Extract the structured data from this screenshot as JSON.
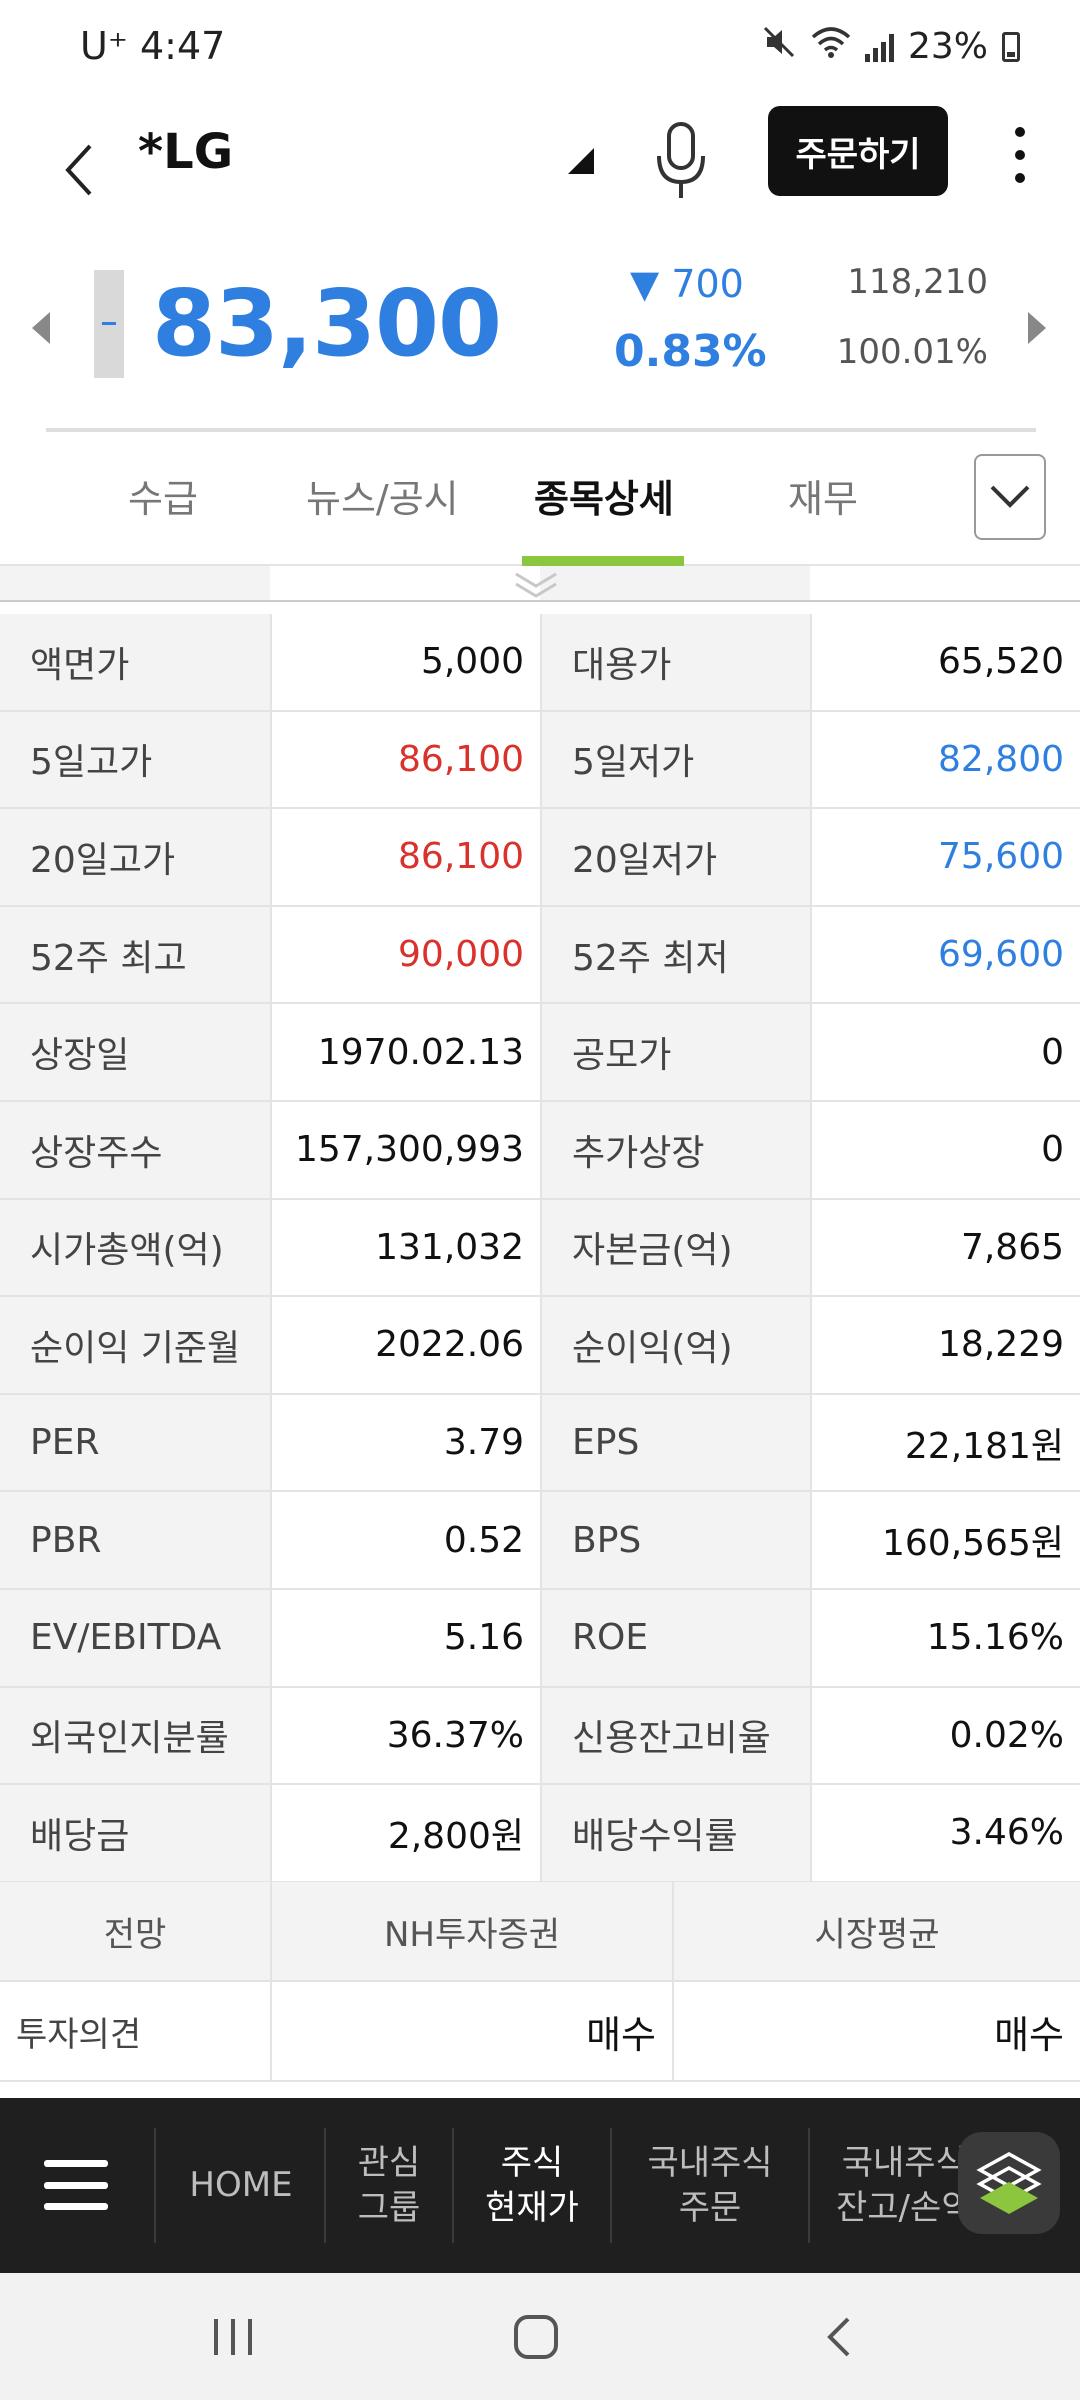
{
  "status_bar": {
    "carrier": "U⁺",
    "time": "4:47",
    "battery": "23%"
  },
  "header": {
    "stock_name": "*LG",
    "order_button": "주문하기"
  },
  "quote": {
    "price": "83,300",
    "change_symbol": "▼",
    "change": "700",
    "change_pct": "0.83%",
    "volume": "118,210",
    "volume_ratio": "100.01%"
  },
  "tabs": [
    {
      "label": "수급"
    },
    {
      "label": "뉴스/공시"
    },
    {
      "label": "종목상세"
    },
    {
      "label": "재무"
    }
  ],
  "detail_rows": [
    {
      "l1": "액면가",
      "v1": "5,000",
      "l2": "대용가",
      "v2": "65,520"
    },
    {
      "l1": "5일고가",
      "v1": "86,100",
      "l2": "5일저가",
      "v2": "82,800"
    },
    {
      "l1": "20일고가",
      "v1": "86,100",
      "l2": "20일저가",
      "v2": "75,600"
    },
    {
      "l1": "52주 최고",
      "v1": "90,000",
      "l2": "52주 최저",
      "v2": "69,600"
    },
    {
      "l1": "상장일",
      "v1": "1970.02.13",
      "l2": "공모가",
      "v2": "0"
    },
    {
      "l1": "상장주수",
      "v1": "157,300,993",
      "l2": "추가상장",
      "v2": "0"
    },
    {
      "l1": "시가총액(억)",
      "v1": "131,032",
      "l2": "자본금(억)",
      "v2": "7,865"
    },
    {
      "l1": "순이익 기준월",
      "v1": "2022.06",
      "l2": "순이익(억)",
      "v2": "18,229"
    },
    {
      "l1": "PER",
      "v1": "3.79",
      "l2": "EPS",
      "v2": "22,181원"
    },
    {
      "l1": "PBR",
      "v1": "0.52",
      "l2": "BPS",
      "v2": "160,565원"
    },
    {
      "l1": "EV/EBITDA",
      "v1": "5.16",
      "l2": "ROE",
      "v2": "15.16%"
    },
    {
      "l1": "외국인지분률",
      "v1": "36.37%",
      "l2": "신용잔고비율",
      "v2": "0.02%"
    },
    {
      "l1": "배당금",
      "v1": "2,800원",
      "l2": "배당수익률",
      "v2": "3.46%"
    }
  ],
  "outlook": {
    "headers": [
      "전망",
      "NH투자증권",
      "시장평균"
    ],
    "row_label": "투자의견",
    "nh_opinion": "매수",
    "market_opinion": "매수"
  },
  "bottom_nav": {
    "home": "HOME",
    "watch_1": "관심",
    "watch_2": "그룹",
    "quote_1": "주식",
    "quote_2": "현재가",
    "order_1": "국내주식",
    "order_2": "주문",
    "balance_1": "국내주식",
    "balance_2": "잔고/손익"
  },
  "colors": {
    "up": "#d9312b",
    "down": "#2f7fe0",
    "accent": "#8cc63f"
  }
}
